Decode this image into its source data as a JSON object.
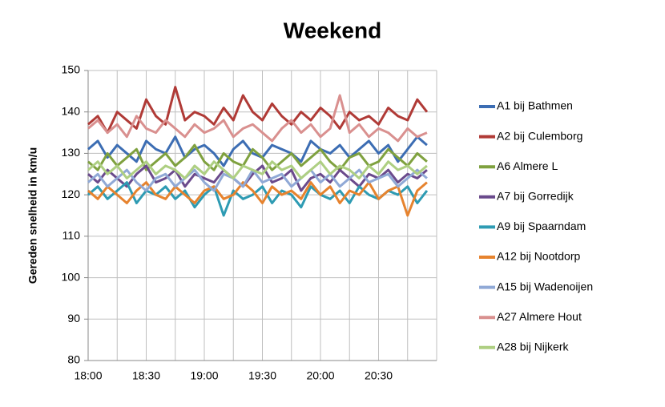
{
  "chart_data": {
    "type": "line",
    "title": "Weekend",
    "y_label": "Gereden snelheid in km/u",
    "categories": [
      "18:00",
      null,
      null,
      null,
      null,
      null,
      "18:30",
      null,
      null,
      null,
      null,
      null,
      "19:00",
      null,
      null,
      null,
      null,
      null,
      "19:30",
      null,
      null,
      null,
      null,
      null,
      "20:00",
      null,
      null,
      null,
      null,
      null,
      "20:30",
      null,
      null,
      null,
      null,
      null
    ],
    "ylim": [
      80,
      150
    ],
    "yticks": [
      80,
      90,
      100,
      110,
      120,
      130,
      140,
      150
    ],
    "grid": true,
    "legend": "right",
    "series": [
      {
        "name": "A1 bij Bathmen",
        "color": "#3c6db3",
        "values": [
          131,
          133,
          129,
          132,
          130,
          128,
          133,
          131,
          130,
          134,
          129,
          131,
          132,
          130,
          127,
          131,
          133,
          130,
          129,
          132,
          131,
          130,
          128,
          133,
          131,
          130,
          132,
          129,
          131,
          133,
          130,
          132,
          128,
          131,
          134,
          132
        ]
      },
      {
        "name": "A2 bij Culemborg",
        "color": "#b03a36",
        "values": [
          137,
          139,
          135,
          140,
          138,
          136,
          143,
          139,
          137,
          146,
          138,
          140,
          139,
          137,
          141,
          138,
          144,
          140,
          138,
          142,
          139,
          137,
          140,
          138,
          141,
          139,
          136,
          140,
          138,
          139,
          137,
          141,
          139,
          138,
          143,
          140
        ]
      },
      {
        "name": "A6 Almere L",
        "color": "#7fa13f",
        "values": [
          128,
          126,
          130,
          127,
          129,
          131,
          126,
          128,
          130,
          127,
          129,
          132,
          128,
          126,
          130,
          128,
          127,
          131,
          129,
          126,
          128,
          130,
          127,
          129,
          131,
          128,
          126,
          129,
          130,
          127,
          128,
          131,
          129,
          127,
          130,
          128
        ]
      },
      {
        "name": "A7 bij Gorredijk",
        "color": "#6a4a8c",
        "values": [
          125,
          123,
          126,
          124,
          122,
          125,
          127,
          123,
          124,
          126,
          122,
          125,
          124,
          123,
          126,
          124,
          122,
          125,
          127,
          123,
          124,
          126,
          121,
          124,
          125,
          123,
          126,
          124,
          122,
          125,
          124,
          126,
          123,
          125,
          124,
          126
        ]
      },
      {
        "name": "A9 bij Spaarndam",
        "color": "#2e9bb3",
        "values": [
          120,
          122,
          119,
          121,
          123,
          118,
          121,
          120,
          122,
          119,
          121,
          117,
          120,
          122,
          115,
          121,
          119,
          120,
          122,
          118,
          121,
          120,
          117,
          122,
          120,
          119,
          121,
          118,
          122,
          120,
          119,
          121,
          120,
          122,
          118,
          121
        ]
      },
      {
        "name": "A12 bij Nootdorp",
        "color": "#e6832e",
        "values": [
          121,
          119,
          122,
          120,
          118,
          121,
          123,
          120,
          119,
          122,
          120,
          118,
          121,
          122,
          119,
          120,
          123,
          121,
          118,
          122,
          120,
          121,
          119,
          123,
          120,
          122,
          118,
          121,
          120,
          123,
          119,
          121,
          122,
          115,
          121,
          123
        ]
      },
      {
        "name": "A15 bij Wadenoijen",
        "color": "#90a9d6",
        "values": [
          123,
          125,
          122,
          124,
          126,
          123,
          121,
          124,
          125,
          122,
          124,
          126,
          123,
          121,
          125,
          124,
          122,
          126,
          123,
          124,
          125,
          122,
          124,
          126,
          123,
          125,
          122,
          124,
          126,
          123,
          124,
          125,
          122,
          124,
          126,
          124
        ]
      },
      {
        "name": "A27 Almere Hout",
        "color": "#d9908f",
        "values": [
          136,
          138,
          135,
          137,
          134,
          139,
          136,
          135,
          138,
          136,
          134,
          137,
          135,
          136,
          138,
          134,
          136,
          137,
          135,
          133,
          136,
          138,
          135,
          137,
          134,
          136,
          144,
          135,
          137,
          134,
          136,
          135,
          133,
          136,
          134,
          135
        ]
      },
      {
        "name": "A28 bij Nijkerk",
        "color": "#aecf82",
        "values": [
          126,
          128,
          125,
          127,
          124,
          126,
          128,
          125,
          127,
          126,
          124,
          127,
          125,
          128,
          126,
          124,
          127,
          126,
          125,
          128,
          126,
          127,
          124,
          126,
          128,
          125,
          127,
          126,
          124,
          127,
          125,
          128,
          126,
          127,
          125,
          127
        ]
      }
    ]
  }
}
